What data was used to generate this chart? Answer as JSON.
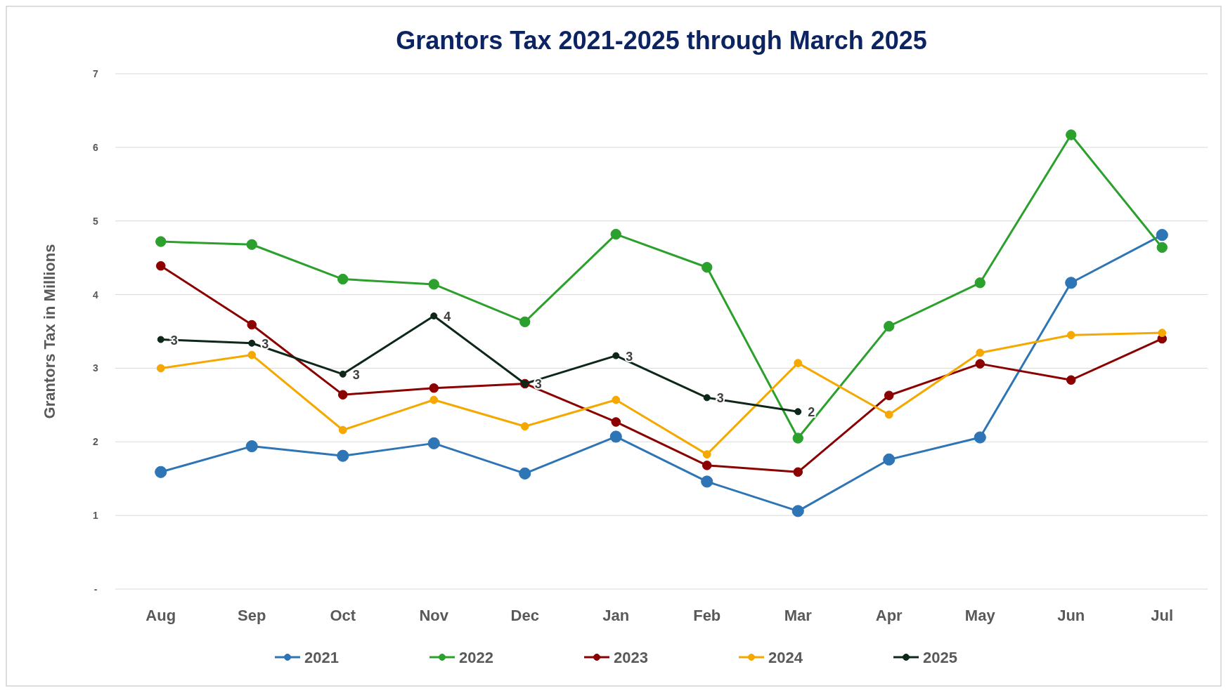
{
  "chart_data": {
    "type": "line",
    "title": "Grantors Tax 2021-2025 through March 2025",
    "ylabel": "Grantors Tax in Millions",
    "categories": [
      "Aug",
      "Sep",
      "Oct",
      "Nov",
      "Dec",
      "Jan",
      "Feb",
      "Mar",
      "Apr",
      "May",
      "Jun",
      "Jul"
    ],
    "series": [
      {
        "name": "2021",
        "color": "#2e75b6",
        "values": [
          1.59,
          1.94,
          1.81,
          1.98,
          1.57,
          2.07,
          1.46,
          1.06,
          1.76,
          2.06,
          4.16,
          4.81
        ]
      },
      {
        "name": "2022",
        "color": "#2ca02c",
        "values": [
          4.72,
          4.68,
          4.21,
          4.14,
          3.63,
          4.82,
          4.37,
          2.05,
          3.57,
          4.16,
          6.17,
          4.64
        ]
      },
      {
        "name": "2023",
        "color": "#8b0000",
        "values": [
          4.39,
          3.59,
          2.64,
          2.73,
          2.79,
          2.27,
          1.68,
          1.59,
          2.63,
          3.06,
          2.84,
          3.4
        ]
      },
      {
        "name": "2024",
        "color": "#f5a800",
        "values": [
          3.0,
          3.18,
          2.16,
          2.57,
          2.21,
          2.57,
          1.83,
          3.07,
          2.37,
          3.21,
          3.45,
          3.48
        ]
      },
      {
        "name": "2025",
        "color": "#0d2818",
        "values": [
          3.39,
          3.34,
          2.92,
          3.71,
          2.79,
          3.17,
          2.6,
          2.41,
          null,
          null,
          null,
          null
        ],
        "value_labels": [
          "3",
          "3",
          "3",
          "4",
          "3",
          "3",
          "3",
          "2",
          null,
          null,
          null,
          null
        ]
      }
    ],
    "ylim": [
      0,
      7
    ],
    "yticks": [
      {
        "value": 0,
        "label": "-"
      },
      1,
      2,
      3,
      4,
      5,
      6,
      7
    ],
    "grid": "y",
    "legend": "bottom",
    "marker": "circle",
    "line_style": "solid"
  }
}
